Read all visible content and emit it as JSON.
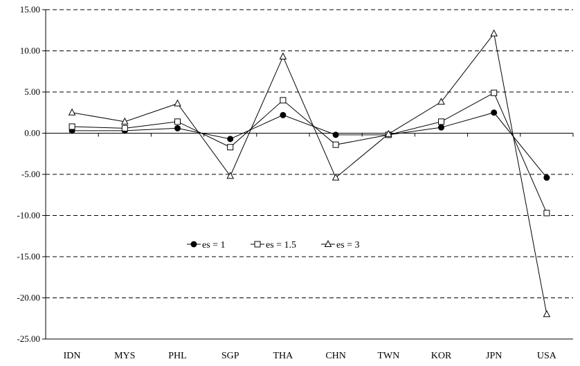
{
  "chart_data": {
    "type": "line",
    "title": "",
    "xlabel": "",
    "ylabel": "",
    "categories": [
      "IDN",
      "MYS",
      "PHL",
      "SGP",
      "THA",
      "CHN",
      "TWN",
      "KOR",
      "JPN",
      "USA"
    ],
    "ylim": [
      -25,
      15
    ],
    "yticks": [
      15,
      10,
      5,
      0,
      -5,
      -10,
      -15,
      -20,
      -25
    ],
    "ytick_labels": [
      "15.00",
      "10.00",
      "5.00",
      "0.00",
      "-5.00",
      "-10.00",
      "-15.00",
      "-20.00",
      "-25.00"
    ],
    "grid": "horizontal dashed",
    "legend_placement": "lower-left",
    "series": [
      {
        "name": "es = 1",
        "marker": "filled-circle",
        "color": "#000000",
        "values": [
          0.3,
          0.3,
          0.6,
          -0.7,
          2.2,
          -0.2,
          -0.2,
          0.7,
          2.5,
          -5.4
        ]
      },
      {
        "name": "es = 1.5",
        "marker": "open-square",
        "color": "#000000",
        "values": [
          0.8,
          0.6,
          1.4,
          -1.7,
          4.0,
          -1.4,
          -0.2,
          1.4,
          4.9,
          -9.7
        ]
      },
      {
        "name": "es = 3",
        "marker": "open-triangle",
        "color": "#000000",
        "values": [
          2.5,
          1.4,
          3.6,
          -5.2,
          9.3,
          -5.4,
          -0.1,
          3.8,
          12.1,
          -22.0
        ]
      }
    ]
  }
}
